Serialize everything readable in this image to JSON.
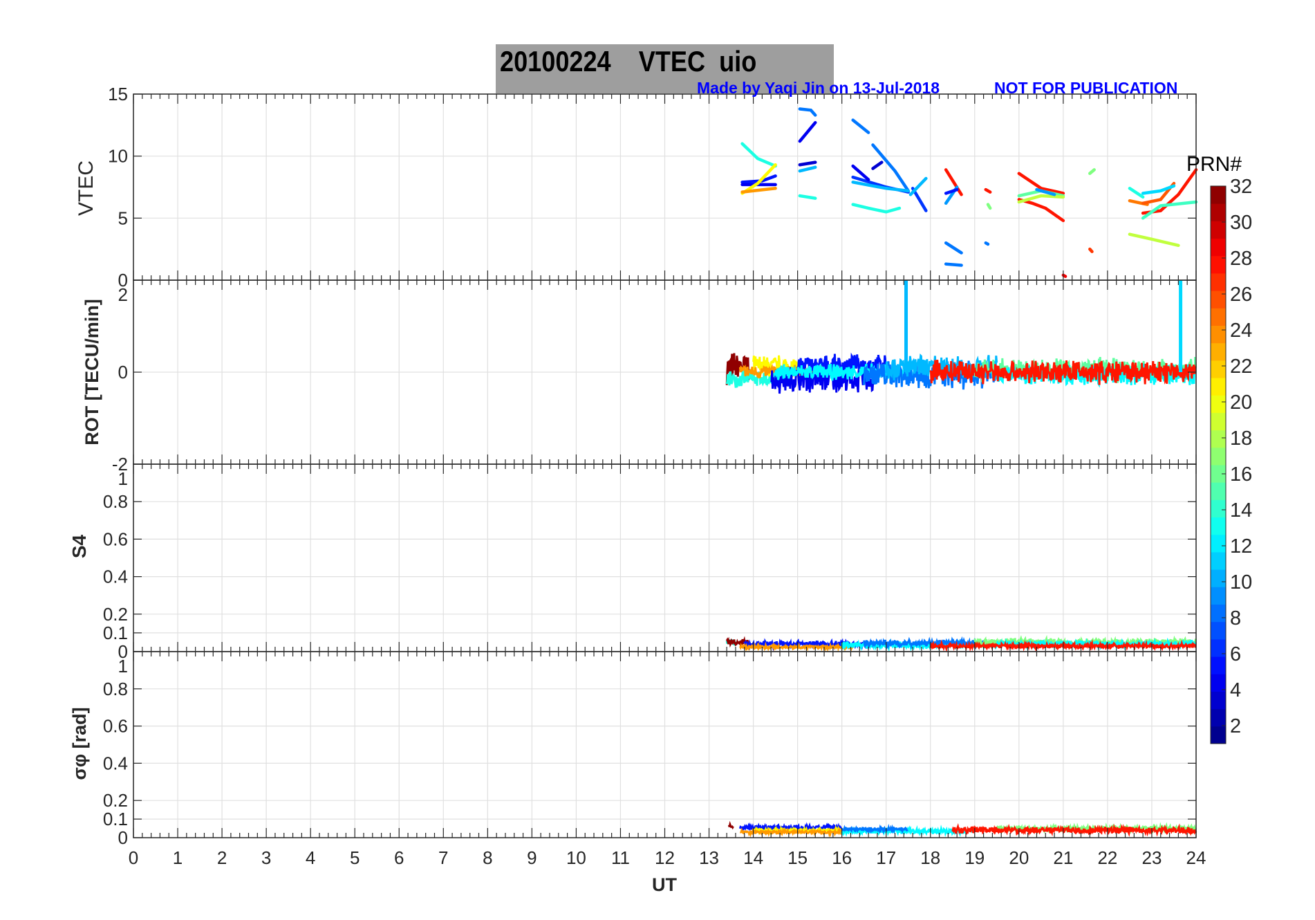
{
  "title": "20100224    VTEC  uio",
  "credit": "Made by Yaqi Jin on 13-Jul-2018",
  "notice": "NOT FOR PUBLICATION",
  "colors": {
    "title_bg": "#9e9e9e",
    "credit": "#0000ff"
  },
  "chart_data": {
    "type": "line",
    "x": {
      "label": "UT",
      "range": [
        0,
        24
      ],
      "ticks": [
        0,
        1,
        2,
        3,
        4,
        5,
        6,
        7,
        8,
        9,
        10,
        11,
        12,
        13,
        14,
        15,
        16,
        17,
        18,
        19,
        20,
        21,
        22,
        23,
        24
      ]
    },
    "colorbar": {
      "label": "PRN#",
      "range": [
        1,
        32
      ],
      "ticks": [
        2,
        4,
        6,
        8,
        10,
        12,
        14,
        16,
        18,
        20,
        22,
        24,
        26,
        28,
        30,
        32
      ],
      "colormap": "jet"
    },
    "panels": [
      {
        "id": "vtec",
        "ylabel": "VTEC",
        "ylim": [
          0,
          15
        ],
        "yticks": [
          0,
          5,
          10,
          15
        ],
        "tracks": [
          {
            "prn": 13,
            "points": [
              [
                13.75,
                11
              ],
              [
                14.1,
                9.8
              ],
              [
                14.5,
                9.2
              ]
            ]
          },
          {
            "prn": 5,
            "points": [
              [
                13.75,
                7.9
              ],
              [
                14.2,
                8.0
              ],
              [
                14.5,
                8.4
              ]
            ]
          },
          {
            "prn": 4,
            "points": [
              [
                13.75,
                7.7
              ],
              [
                14.5,
                7.7
              ]
            ]
          },
          {
            "prn": 20,
            "points": [
              [
                13.75,
                7.0
              ],
              [
                14.1,
                7.8
              ],
              [
                14.5,
                9.3
              ]
            ]
          },
          {
            "prn": 23,
            "points": [
              [
                13.75,
                7.1
              ],
              [
                14.5,
                7.4
              ]
            ]
          },
          {
            "prn": 8,
            "points": [
              [
                15.05,
                13.8
              ],
              [
                15.3,
                13.7
              ],
              [
                15.4,
                13.3
              ]
            ]
          },
          {
            "prn": 4,
            "points": [
              [
                15.05,
                11.2
              ],
              [
                15.4,
                12.7
              ]
            ]
          },
          {
            "prn": 3,
            "points": [
              [
                15.05,
                9.3
              ],
              [
                15.4,
                9.5
              ]
            ]
          },
          {
            "prn": 10,
            "points": [
              [
                15.05,
                8.8
              ],
              [
                15.4,
                9.1
              ]
            ]
          },
          {
            "prn": 13,
            "points": [
              [
                15.05,
                6.8
              ],
              [
                15.4,
                6.6
              ]
            ]
          },
          {
            "prn": 8,
            "points": [
              [
                16.25,
                12.9
              ],
              [
                16.6,
                11.9
              ]
            ]
          },
          {
            "prn": 8,
            "points": [
              [
                16.7,
                10.9
              ],
              [
                17.2,
                8.8
              ],
              [
                17.5,
                7.2
              ]
            ]
          },
          {
            "prn": 6,
            "points": [
              [
                16.25,
                8.3
              ],
              [
                17.0,
                7.5
              ],
              [
                17.5,
                7.1
              ]
            ]
          },
          {
            "prn": 6,
            "points": [
              [
                17.6,
                7.4
              ],
              [
                17.9,
                5.6
              ]
            ]
          },
          {
            "prn": 4,
            "points": [
              [
                16.25,
                9.2
              ],
              [
                16.6,
                8.1
              ]
            ]
          },
          {
            "prn": 3,
            "points": [
              [
                16.7,
                9.0
              ],
              [
                16.9,
                9.5
              ]
            ]
          },
          {
            "prn": 10,
            "points": [
              [
                16.25,
                7.9
              ],
              [
                17.0,
                7.4
              ],
              [
                17.5,
                7.2
              ]
            ]
          },
          {
            "prn": 13,
            "points": [
              [
                16.25,
                6.1
              ],
              [
                16.6,
                5.8
              ],
              [
                17.0,
                5.5
              ],
              [
                17.3,
                5.8
              ]
            ]
          },
          {
            "prn": 10,
            "points": [
              [
                17.55,
                6.9
              ],
              [
                17.9,
                8.2
              ]
            ]
          },
          {
            "prn": 27,
            "points": [
              [
                18.35,
                8.9
              ],
              [
                18.7,
                6.9
              ]
            ]
          },
          {
            "prn": 9,
            "points": [
              [
                18.35,
                6.2
              ],
              [
                18.6,
                7.5
              ]
            ]
          },
          {
            "prn": 5,
            "points": [
              [
                18.35,
                7.0
              ],
              [
                18.6,
                7.3
              ]
            ]
          },
          {
            "prn": 8,
            "points": [
              [
                18.35,
                3.0
              ],
              [
                18.7,
                2.2
              ]
            ]
          },
          {
            "prn": 8,
            "points": [
              [
                18.35,
                1.3
              ],
              [
                18.7,
                1.2
              ]
            ]
          },
          {
            "prn": 27,
            "points": [
              [
                19.25,
                7.3
              ],
              [
                19.35,
                7.1
              ]
            ]
          },
          {
            "prn": 16,
            "points": [
              [
                19.3,
                6.1
              ],
              [
                19.35,
                5.8
              ]
            ]
          },
          {
            "prn": 8,
            "points": [
              [
                19.25,
                3.0
              ],
              [
                19.3,
                2.9
              ]
            ]
          },
          {
            "prn": 27,
            "points": [
              [
                20.0,
                8.6
              ],
              [
                20.5,
                7.4
              ],
              [
                21.0,
                7.0
              ]
            ]
          },
          {
            "prn": 27,
            "points": [
              [
                20.0,
                6.5
              ],
              [
                20.3,
                6.2
              ],
              [
                20.6,
                5.8
              ],
              [
                21.0,
                4.8
              ]
            ]
          },
          {
            "prn": 15,
            "points": [
              [
                20.0,
                6.8
              ],
              [
                20.5,
                7.2
              ],
              [
                21.0,
                6.8
              ]
            ]
          },
          {
            "prn": 18,
            "points": [
              [
                20.0,
                6.3
              ],
              [
                20.5,
                6.8
              ],
              [
                21.0,
                6.7
              ]
            ]
          },
          {
            "prn": 9,
            "points": [
              [
                20.4,
                7.3
              ],
              [
                20.8,
                6.9
              ]
            ]
          },
          {
            "prn": 16,
            "points": [
              [
                21.6,
                8.6
              ],
              [
                21.7,
                8.9
              ]
            ]
          },
          {
            "prn": 26,
            "points": [
              [
                21.6,
                2.5
              ],
              [
                21.65,
                2.3
              ]
            ]
          },
          {
            "prn": 24,
            "points": [
              [
                22.5,
                6.4
              ],
              [
                22.9,
                6.1
              ]
            ]
          },
          {
            "prn": 13,
            "points": [
              [
                22.5,
                7.4
              ],
              [
                22.8,
                6.7
              ]
            ]
          },
          {
            "prn": 25,
            "points": [
              [
                22.8,
                6.2
              ],
              [
                23.2,
                6.5
              ],
              [
                23.5,
                7.8
              ]
            ]
          },
          {
            "prn": 27,
            "points": [
              [
                22.8,
                5.4
              ],
              [
                23.2,
                5.6
              ],
              [
                23.6,
                6.9
              ],
              [
                24.0,
                8.9
              ]
            ]
          },
          {
            "prn": 11,
            "points": [
              [
                22.8,
                7.0
              ],
              [
                23.2,
                7.2
              ],
              [
                23.5,
                7.6
              ]
            ]
          },
          {
            "prn": 14,
            "points": [
              [
                22.8,
                5.0
              ],
              [
                23.2,
                6.0
              ],
              [
                24.0,
                6.3
              ]
            ]
          },
          {
            "prn": 18,
            "points": [
              [
                22.5,
                3.7
              ],
              [
                23.0,
                3.3
              ],
              [
                23.6,
                2.8
              ]
            ]
          },
          {
            "prn": 28,
            "points": [
              [
                21.0,
                0.4
              ],
              [
                21.05,
                0.3
              ]
            ]
          }
        ]
      },
      {
        "id": "rot",
        "ylabel": "ROT [TECU/min]",
        "ylim": [
          -2,
          2
        ],
        "yticks": [
          -2,
          0,
          2
        ],
        "bands": [
          {
            "prn": 31,
            "start": 13.4,
            "end": 13.9,
            "mean": 0.1,
            "amp": 0.4
          },
          {
            "prn": 13,
            "start": 13.4,
            "end": 14.6,
            "mean": -0.15,
            "amp": 0.2
          },
          {
            "prn": 20,
            "start": 14.0,
            "end": 15.0,
            "mean": 0.12,
            "amp": 0.3
          },
          {
            "prn": 23,
            "start": 13.7,
            "end": 15.6,
            "mean": 0.0,
            "amp": 0.18
          },
          {
            "prn": 4,
            "start": 14.4,
            "end": 16.8,
            "mean": -0.15,
            "amp": 0.35
          },
          {
            "prn": 5,
            "start": 15.0,
            "end": 17.0,
            "mean": 0.15,
            "amp": 0.25
          },
          {
            "prn": 12,
            "start": 14.5,
            "end": 17.6,
            "mean": 0.0,
            "amp": 0.2
          },
          {
            "prn": 8,
            "start": 16.5,
            "end": 19.5,
            "mean": -0.05,
            "amp": 0.35
          },
          {
            "prn": 10,
            "start": 17.0,
            "end": 19.5,
            "mean": 0.1,
            "amp": 0.3
          },
          {
            "prn": 15,
            "start": 19.0,
            "end": 24.0,
            "mean": 0.05,
            "amp": 0.3
          },
          {
            "prn": 12,
            "start": 19.5,
            "end": 24.0,
            "mean": -0.05,
            "amp": 0.25
          },
          {
            "prn": 27,
            "start": 18.0,
            "end": 24.0,
            "mean": 0.0,
            "amp": 0.3
          }
        ],
        "spikes": [
          {
            "prn": 10,
            "x": 17.45,
            "y": 2
          },
          {
            "prn": 11,
            "x": 23.65,
            "y": 2
          }
        ]
      },
      {
        "id": "s4",
        "ylabel": "S4",
        "ylim": [
          0,
          1
        ],
        "yticks": [
          0,
          0.1,
          0.2,
          0.4,
          0.6,
          0.8,
          1
        ],
        "bands": [
          {
            "prn": 13,
            "start": 13.4,
            "end": 13.6,
            "mean": 0.05,
            "amp": 0.03
          },
          {
            "prn": 31,
            "start": 13.4,
            "end": 13.9,
            "mean": 0.05,
            "amp": 0.02
          },
          {
            "prn": 5,
            "start": 13.8,
            "end": 16.8,
            "mean": 0.04,
            "amp": 0.02
          },
          {
            "prn": 23,
            "start": 13.7,
            "end": 16.3,
            "mean": 0.025,
            "amp": 0.01
          },
          {
            "prn": 12,
            "start": 16.0,
            "end": 19.5,
            "mean": 0.035,
            "amp": 0.02
          },
          {
            "prn": 8,
            "start": 16.5,
            "end": 19.5,
            "mean": 0.045,
            "amp": 0.02
          },
          {
            "prn": 16,
            "start": 19.0,
            "end": 24.0,
            "mean": 0.05,
            "amp": 0.025
          },
          {
            "prn": 12,
            "start": 19.5,
            "end": 24.0,
            "mean": 0.04,
            "amp": 0.02
          },
          {
            "prn": 27,
            "start": 18.0,
            "end": 24.0,
            "mean": 0.03,
            "amp": 0.015
          }
        ]
      },
      {
        "id": "sigma",
        "ylabel": "σφ [rad]",
        "ylim": [
          0,
          1
        ],
        "yticks": [
          0,
          0.1,
          0.2,
          0.4,
          0.6,
          0.8,
          1
        ],
        "bands": [
          {
            "prn": 31,
            "start": 13.45,
            "end": 13.55,
            "mean": 0.06,
            "amp": 0.02
          },
          {
            "prn": 5,
            "start": 13.7,
            "end": 16.0,
            "mean": 0.055,
            "amp": 0.015
          },
          {
            "prn": 20,
            "start": 14.0,
            "end": 16.0,
            "mean": 0.04,
            "amp": 0.01
          },
          {
            "prn": 23,
            "start": 13.7,
            "end": 16.0,
            "mean": 0.03,
            "amp": 0.01
          },
          {
            "prn": 12,
            "start": 16.0,
            "end": 19.0,
            "mean": 0.035,
            "amp": 0.015
          },
          {
            "prn": 8,
            "start": 16.0,
            "end": 17.5,
            "mean": 0.045,
            "amp": 0.01
          },
          {
            "prn": 16,
            "start": 19.5,
            "end": 24.0,
            "mean": 0.05,
            "amp": 0.015
          },
          {
            "prn": 27,
            "start": 18.5,
            "end": 24.0,
            "mean": 0.04,
            "amp": 0.02
          }
        ]
      }
    ]
  }
}
